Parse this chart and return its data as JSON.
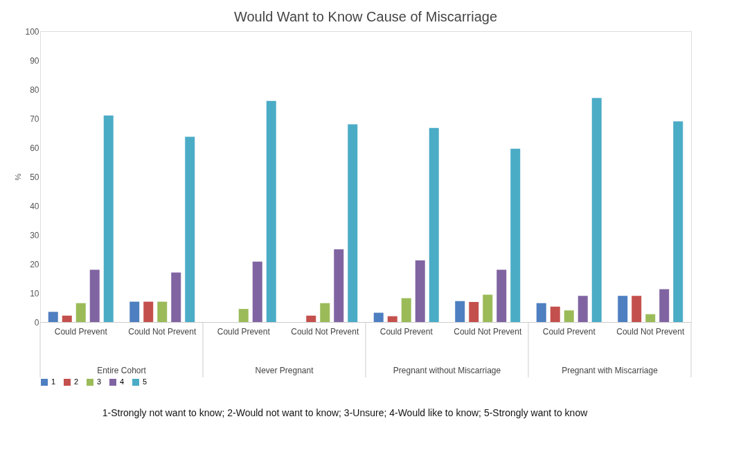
{
  "chart_data": {
    "type": "bar",
    "title": "Would Want to Know Cause of Miscarriage",
    "ylabel": "%",
    "categories": [
      "Could Prevent",
      "Could Not Prevent",
      "Could Prevent",
      "Could Not Prevent",
      "Could Prevent",
      "Could Not Prevent",
      "Could Prevent",
      "Could Not Prevent"
    ],
    "series": [
      {
        "name": "1",
        "color": "#4e7fc0",
        "values": [
          3.5,
          7,
          0,
          0,
          3.2,
          7.2,
          6.5,
          9
        ]
      },
      {
        "name": "2",
        "color": "#c4504d",
        "values": [
          2.2,
          7,
          0,
          2.2,
          2,
          6.9,
          5.3,
          9
        ]
      },
      {
        "name": "3",
        "color": "#9bbb59",
        "values": [
          6.5,
          7,
          4.5,
          6.5,
          8.2,
          9.4,
          4,
          2.7
        ]
      },
      {
        "name": "4",
        "color": "#8064a2",
        "values": [
          18,
          17,
          20.8,
          25,
          21.2,
          18,
          9,
          11.3
        ]
      },
      {
        "name": "5",
        "color": "#4bacc6",
        "values": [
          71,
          63.7,
          76,
          68,
          66.7,
          59.6,
          77,
          69
        ]
      }
    ],
    "ylim": [
      0,
      100
    ],
    "yticks": [
      0,
      10,
      20,
      30,
      40,
      50,
      60,
      70,
      80,
      90,
      100
    ],
    "grid": false,
    "legend": "bottom",
    "annotations": [
      "Entire Cohort",
      "Never Pregnant",
      "Pregnant without Miscarriage",
      "Pregnant with Miscarriage",
      "1-Strongly not want to know; 2-Would not want to know; 3-Unsure; 4-Would like to know; 5-Strongly want to know"
    ]
  }
}
